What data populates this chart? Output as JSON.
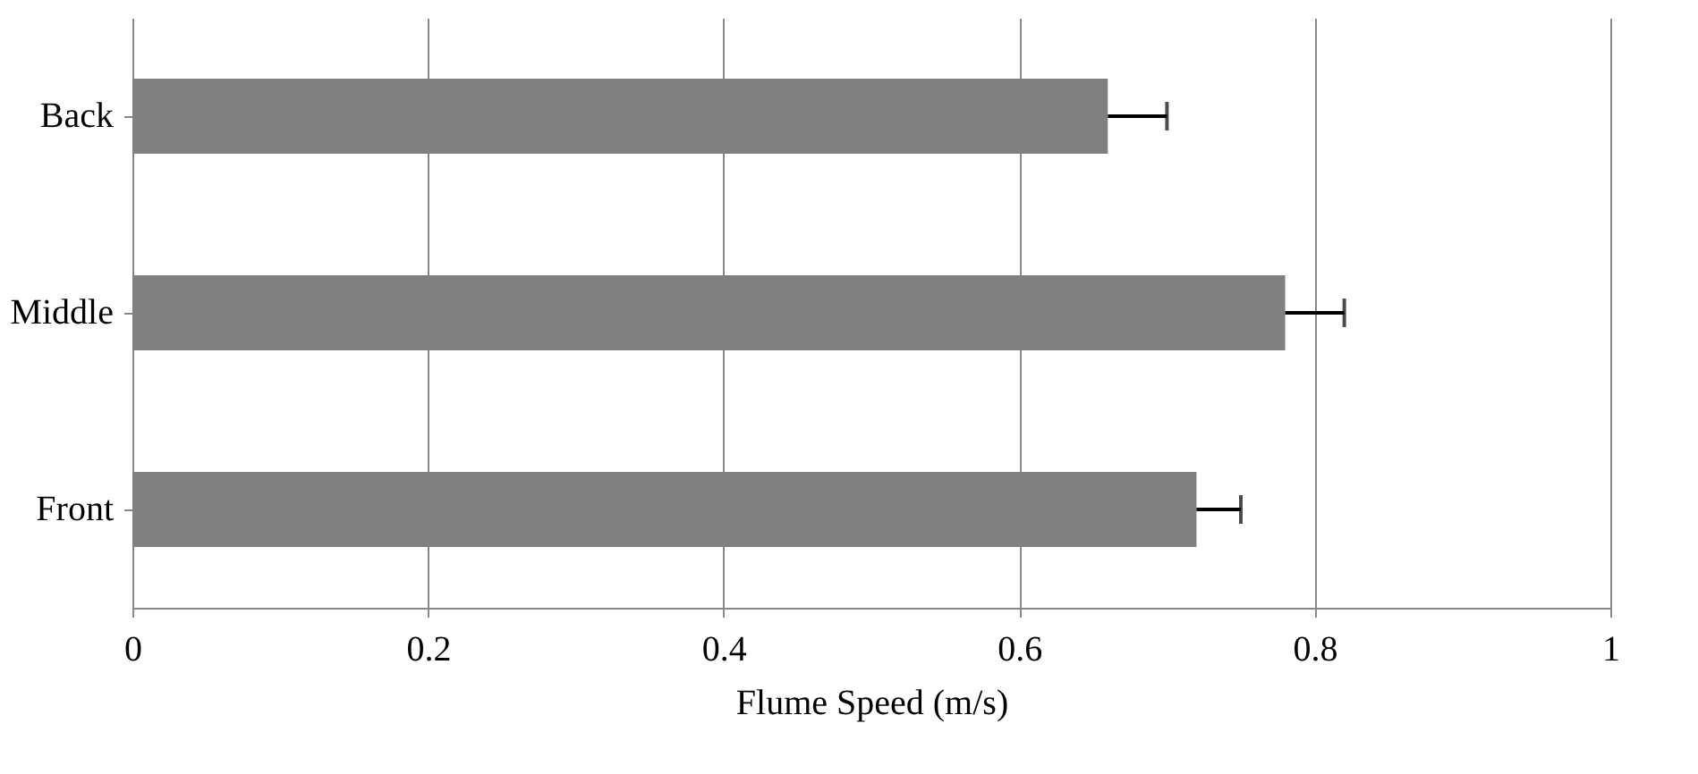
{
  "chart_data": {
    "type": "bar",
    "orientation": "horizontal",
    "xlabel": "Flume Speed (m/s)",
    "categories": [
      "Back",
      "Middle",
      "Front"
    ],
    "values": [
      0.66,
      0.78,
      0.72
    ],
    "errors": [
      [
        0.66,
        0.7
      ],
      [
        0.78,
        0.82
      ],
      [
        0.72,
        0.75
      ]
    ],
    "color": "#808080",
    "xlim": [
      0,
      1
    ],
    "xticks": [
      0,
      0.2,
      0.4,
      0.6,
      0.8,
      1
    ],
    "grid": "x"
  }
}
